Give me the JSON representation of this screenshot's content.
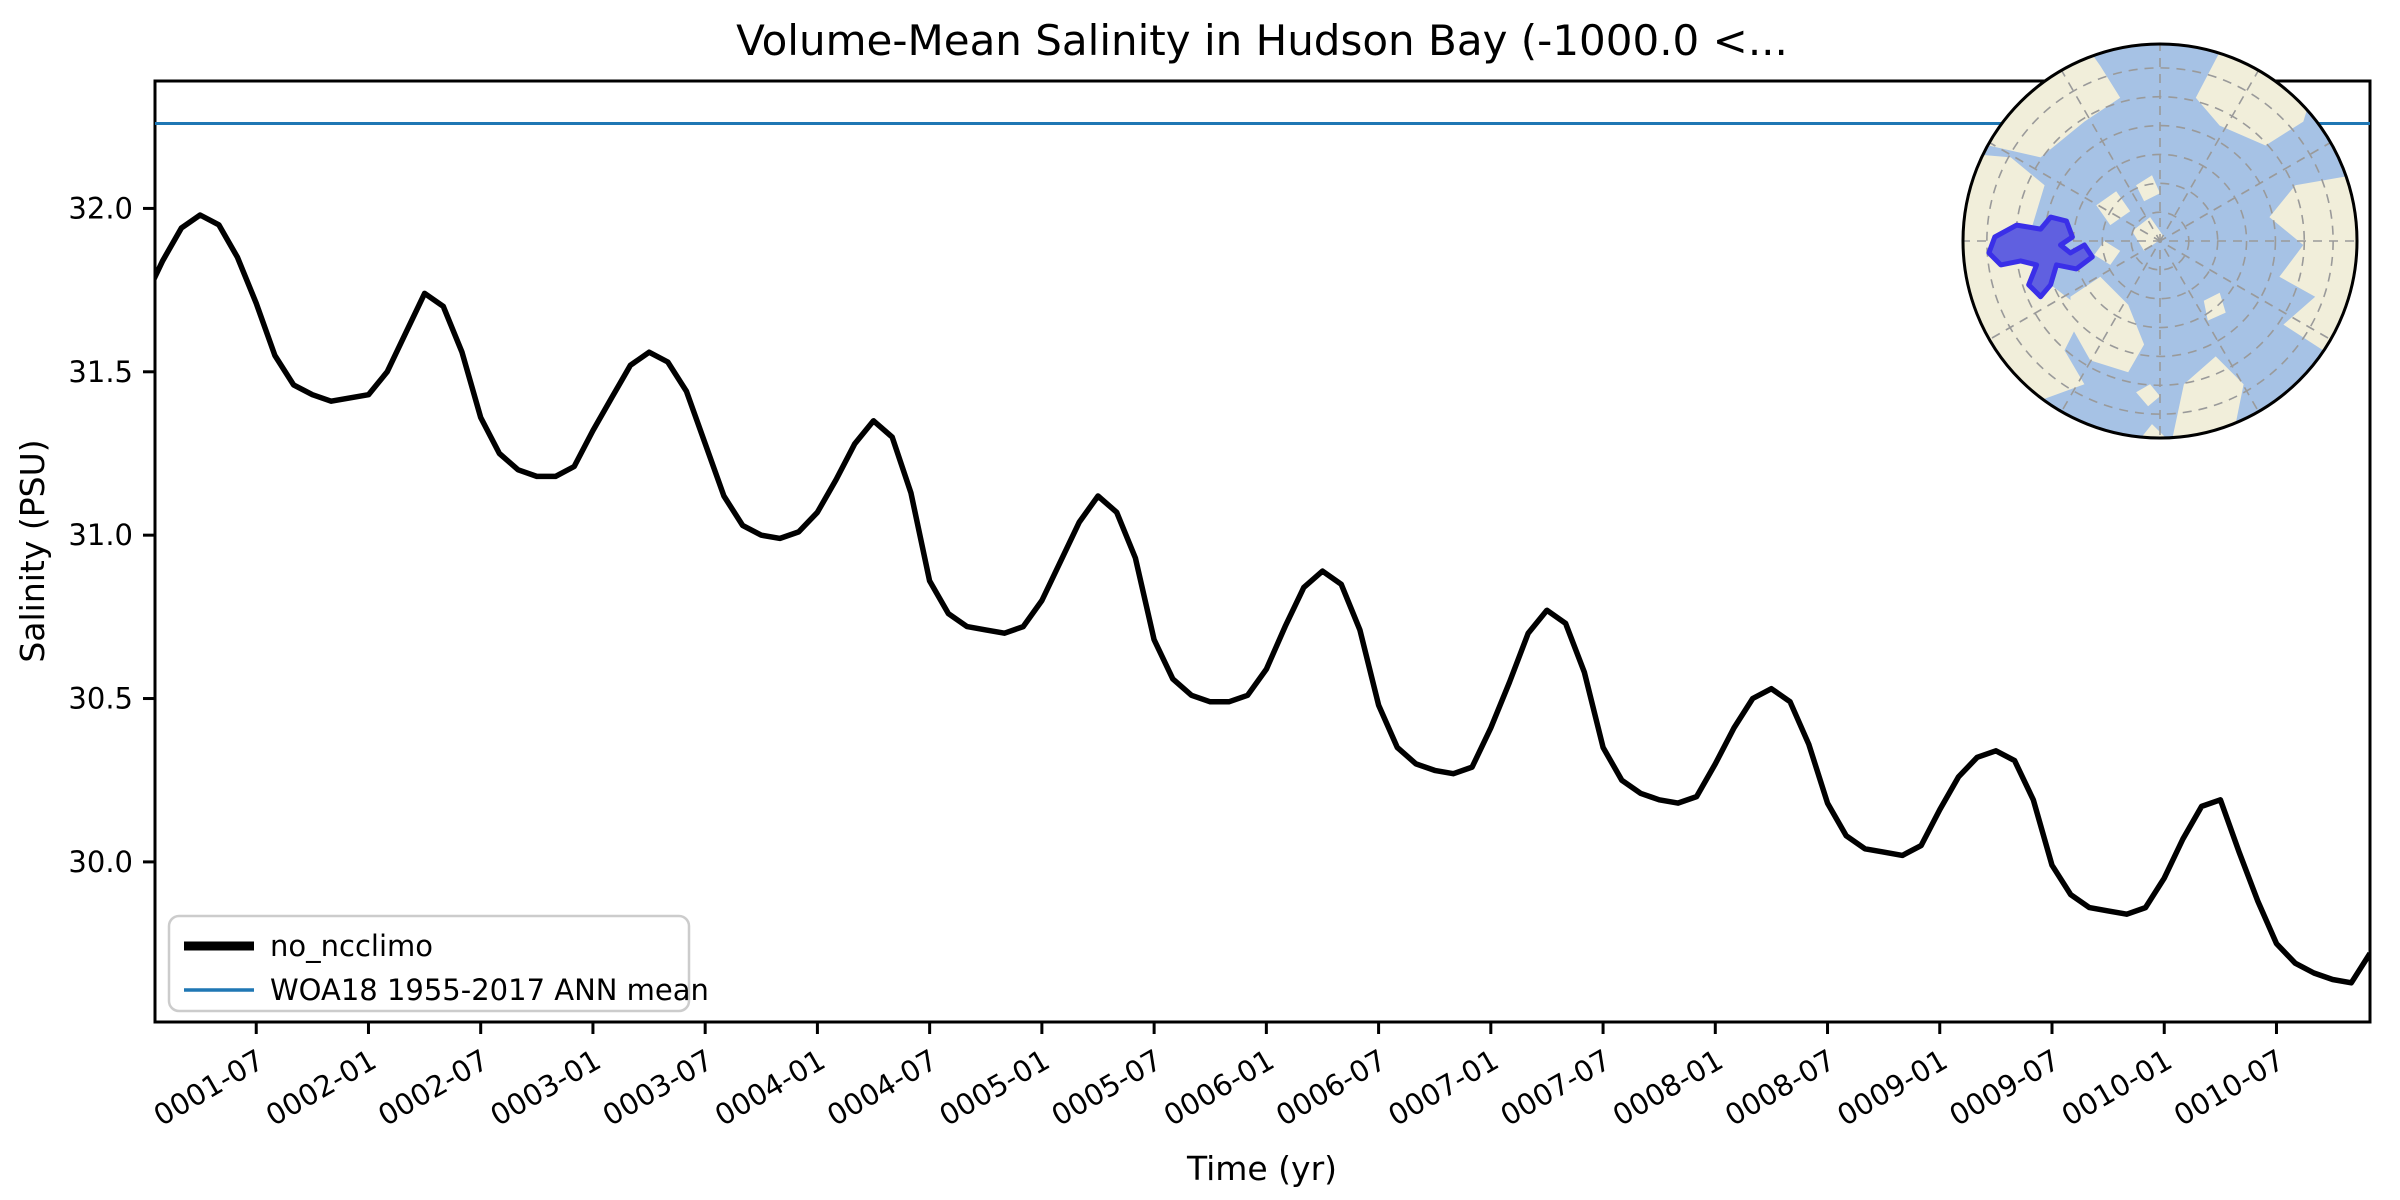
{
  "chart_data": {
    "type": "line",
    "title": "Volume-Mean Salinity in Hudson Bay (-1000.0 <...",
    "xlabel": "Time (yr)",
    "ylabel": "Salinity (PSU)",
    "ylim": [
      29.51,
      32.39
    ],
    "yticks": [
      32.0,
      31.5,
      31.0,
      30.5,
      30.0
    ],
    "ytick_labels": [
      "32.0",
      "31.5",
      "31.0",
      "30.5",
      "30.0"
    ],
    "x_start": "0001-01",
    "x_end": "0010-12",
    "x_total_months": 120,
    "xtick_labels": [
      "0001-07",
      "0002-01",
      "0002-07",
      "0003-01",
      "0003-07",
      "0004-01",
      "0004-07",
      "0005-01",
      "0005-07",
      "0006-01",
      "0006-07",
      "0007-01",
      "0007-07",
      "0008-01",
      "0008-07",
      "0009-01",
      "0009-07",
      "0010-01",
      "0010-07"
    ],
    "xtick_month_indices": [
      6,
      12,
      18,
      24,
      30,
      36,
      42,
      48,
      54,
      60,
      66,
      72,
      78,
      84,
      90,
      96,
      102,
      108,
      114
    ],
    "grid": false,
    "legend_position": "lower left",
    "series": [
      {
        "name": "no_ncclimo",
        "color": "#000000",
        "linewidth": 5.5,
        "monthly_values": [
          31.72,
          31.84,
          31.94,
          31.98,
          31.95,
          31.85,
          31.71,
          31.55,
          31.46,
          31.43,
          31.41,
          31.42,
          31.43,
          31.5,
          31.62,
          31.74,
          31.7,
          31.56,
          31.36,
          31.25,
          31.2,
          31.18,
          31.18,
          31.21,
          31.32,
          31.42,
          31.52,
          31.56,
          31.53,
          31.44,
          31.28,
          31.12,
          31.03,
          31.0,
          30.99,
          31.01,
          31.07,
          31.17,
          31.28,
          31.35,
          31.3,
          31.13,
          30.86,
          30.76,
          30.72,
          30.71,
          30.7,
          30.72,
          30.8,
          30.92,
          31.04,
          31.12,
          31.07,
          30.93,
          30.68,
          30.56,
          30.51,
          30.49,
          30.49,
          30.51,
          30.59,
          30.72,
          30.84,
          30.89,
          30.85,
          30.71,
          30.48,
          30.35,
          30.3,
          30.28,
          30.27,
          30.29,
          30.41,
          30.55,
          30.7,
          30.77,
          30.73,
          30.58,
          30.35,
          30.25,
          30.21,
          30.19,
          30.18,
          30.2,
          30.3,
          30.41,
          30.5,
          30.53,
          30.49,
          30.36,
          30.18,
          30.08,
          30.04,
          30.03,
          30.02,
          30.05,
          30.16,
          30.26,
          30.32,
          30.34,
          30.31,
          30.19,
          29.99,
          29.9,
          29.86,
          29.85,
          29.84,
          29.86,
          29.95,
          30.07,
          30.17,
          30.19,
          30.03,
          29.88,
          29.75,
          29.69,
          29.66,
          29.64,
          29.63,
          29.72
        ]
      },
      {
        "name": "WOA18 1955-2017 ANN mean",
        "color": "#1f77b4",
        "linewidth": 3,
        "type": "hline",
        "value": 32.26
      }
    ]
  },
  "inset_map": {
    "projection": "north-polar-stereographic",
    "highlight_region": "Hudson Bay",
    "ocean_color": "#a6c2e5",
    "land_color": "#f1eeda",
    "highlight_fill": "#6060e0",
    "highlight_edge": "#3a2fe8",
    "graticule_color": "#9a9a9a",
    "border_color": "#000000"
  }
}
